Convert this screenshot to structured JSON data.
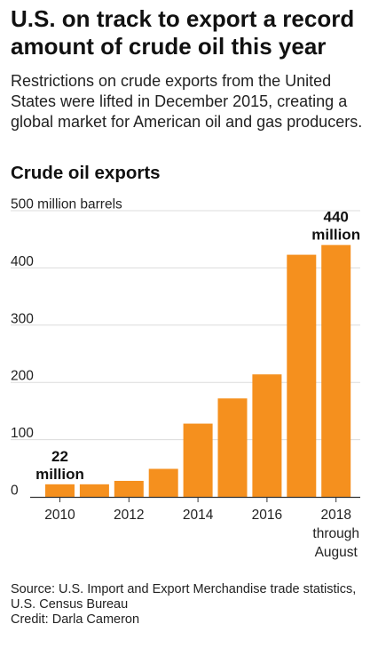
{
  "headline": "U.S. on track to export a record amount of crude oil this year",
  "subtitle": "Restrictions on crude exports from the United States were lifted in December 2015, creating a global market for American oil and gas producers.",
  "chart_data": {
    "type": "bar",
    "title": "Crude oil exports",
    "ylabel": "million barrels",
    "categories": [
      "2010",
      "2011",
      "2012",
      "2013",
      "2014",
      "2015",
      "2016",
      "2017",
      "2018 through August"
    ],
    "x_tick_labels": [
      "2010",
      "2012",
      "2014",
      "2016",
      "2018 through August"
    ],
    "x_tick_categories": [
      "2010",
      "2012",
      "2014",
      "2016",
      "2018 through August"
    ],
    "values": [
      22,
      22,
      28,
      49,
      128,
      172,
      214,
      423,
      440
    ],
    "ylim": [
      0,
      500
    ],
    "yticks": [
      0,
      100,
      200,
      300,
      400,
      500
    ],
    "ytick_labels": [
      "0",
      "100",
      "200",
      "300",
      "400",
      "500 million barrels"
    ],
    "grid": true,
    "bar_color": "#f5901e",
    "annotations": [
      {
        "category": "2010",
        "lines": [
          "22",
          "million"
        ]
      },
      {
        "category": "2018 through August",
        "lines": [
          "440",
          "million"
        ]
      }
    ]
  },
  "footer": {
    "source": "Source: U.S. Import and Export Merchandise trade statistics, U.S. Census Bureau",
    "credit": "Credit: Darla Cameron"
  }
}
